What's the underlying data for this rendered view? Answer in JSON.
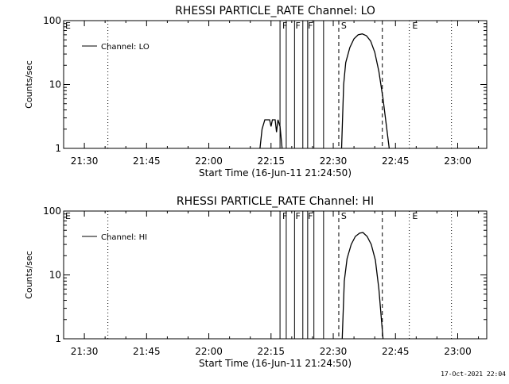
{
  "chart_data": [
    {
      "type": "line",
      "title": "RHESSI PARTICLE_RATE Channel: LO",
      "xlabel": "Start Time (16-Jun-11 21:24:50)",
      "ylabel": "Counts/sec",
      "y_scale": "log",
      "ylim": [
        1,
        100
      ],
      "xlim": [
        "21:25",
        "23:07"
      ],
      "x_ticks": [
        "21:30",
        "21:45",
        "22:00",
        "22:15",
        "22:30",
        "22:45",
        "23:00"
      ],
      "y_ticks": [
        "1",
        "10",
        "100"
      ],
      "legend": {
        "position": "top-left",
        "entry": "Channel: LO"
      },
      "grid": false,
      "series": [
        {
          "name": "Channel: LO",
          "segments": [
            [
              [
                "22:12:20",
                1
              ],
              [
                "22:12:50",
                2.0
              ],
              [
                "22:13:30",
                2.8
              ],
              [
                "22:14:40",
                2.8
              ],
              [
                "22:15:00",
                2.2
              ],
              [
                "22:15:20",
                2.8
              ],
              [
                "22:16:00",
                2.8
              ],
              [
                "22:16:20",
                1.8
              ],
              [
                "22:16:40",
                2.8
              ],
              [
                "22:17:10",
                2.2
              ],
              [
                "22:17:40",
                1
              ]
            ],
            [
              [
                "22:32:00",
                1
              ],
              [
                "22:32:30",
                10
              ],
              [
                "22:33:00",
                22
              ],
              [
                "22:34:00",
                38
              ],
              [
                "22:35:00",
                52
              ],
              [
                "22:36:00",
                60
              ],
              [
                "22:37:00",
                62
              ],
              [
                "22:38:00",
                58
              ],
              [
                "22:39:00",
                48
              ],
              [
                "22:40:00",
                32
              ],
              [
                "22:41:00",
                16
              ],
              [
                "22:42:00",
                6
              ],
              [
                "22:43:30",
                1
              ]
            ]
          ]
        }
      ],
      "markers": {
        "solid": [
          "22:17:10",
          "22:18:40",
          "22:20:40",
          "22:22:40",
          "22:23:50",
          "22:25:20",
          "22:27:40"
        ],
        "dashed": [
          "22:31:20",
          "22:41:50"
        ],
        "dotted": [
          "21:35:40",
          "22:48:20",
          "22:58:30"
        ],
        "labels": [
          {
            "text": "E",
            "at": "21:25:00"
          },
          {
            "text": "F",
            "at": "22:17:20"
          },
          {
            "text": "F",
            "at": "22:20:30"
          },
          {
            "text": "F",
            "at": "22:23:30"
          },
          {
            "text": "S",
            "at": "22:31:30"
          },
          {
            "text": "E",
            "at": "22:48:40"
          }
        ]
      }
    },
    {
      "type": "line",
      "title": "RHESSI PARTICLE_RATE Channel: HI",
      "xlabel": "Start Time (16-Jun-11 21:24:50)",
      "ylabel": "Counts/sec",
      "y_scale": "log",
      "ylim": [
        1,
        100
      ],
      "xlim": [
        "21:25",
        "23:07"
      ],
      "x_ticks": [
        "21:30",
        "21:45",
        "22:00",
        "22:15",
        "22:30",
        "22:45",
        "23:00"
      ],
      "y_ticks": [
        "1",
        "10",
        "100"
      ],
      "legend": {
        "position": "top-left",
        "entry": "Channel: HI"
      },
      "grid": false,
      "series": [
        {
          "name": "Channel: HI",
          "segments": [
            [
              [
                "22:32:10",
                1
              ],
              [
                "22:32:40",
                8
              ],
              [
                "22:33:20",
                18
              ],
              [
                "22:34:20",
                30
              ],
              [
                "22:35:20",
                40
              ],
              [
                "22:36:20",
                45
              ],
              [
                "22:37:10",
                46
              ],
              [
                "22:38:10",
                40
              ],
              [
                "22:39:10",
                30
              ],
              [
                "22:40:10",
                17
              ],
              [
                "22:41:00",
                6
              ],
              [
                "22:42:00",
                1
              ]
            ]
          ]
        }
      ],
      "markers": {
        "solid": [
          "22:17:10",
          "22:18:40",
          "22:20:40",
          "22:22:40",
          "22:23:50",
          "22:25:20",
          "22:27:40"
        ],
        "dashed": [
          "22:31:20",
          "22:41:50"
        ],
        "dotted": [
          "21:35:40",
          "22:48:20",
          "22:58:30"
        ],
        "labels": [
          {
            "text": "E",
            "at": "21:25:00"
          },
          {
            "text": "F",
            "at": "22:17:20"
          },
          {
            "text": "F",
            "at": "22:20:30"
          },
          {
            "text": "F",
            "at": "22:23:30"
          },
          {
            "text": "S",
            "at": "22:31:30"
          },
          {
            "text": "E",
            "at": "22:48:40"
          }
        ]
      }
    }
  ],
  "footer": {
    "timestamp": "17-Oct-2021 22:04"
  }
}
